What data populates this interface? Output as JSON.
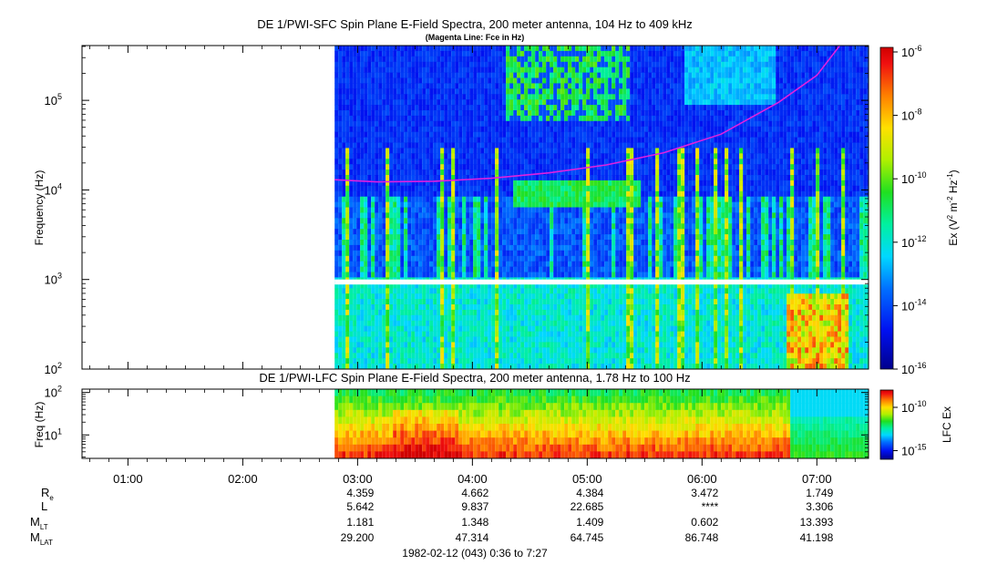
{
  "chart_data": [
    {
      "type": "heatmap",
      "title": "DE 1/PWI-SFC  Spin Plane E-Field Spectra, 200 meter antenna, 104 Hz to 409 kHz",
      "subtitle": "(Magenta Line: Fce in Hz)",
      "ylabel": "Frequency (Hz)",
      "y_scale": "log",
      "ylim": [
        100,
        409000
      ],
      "y_ticks": [
        {
          "value": 100,
          "base": "10",
          "exp": "2"
        },
        {
          "value": 1000,
          "base": "10",
          "exp": "3"
        },
        {
          "value": 10000,
          "base": "10",
          "exp": "4"
        },
        {
          "value": 100000,
          "base": "10",
          "exp": "5"
        }
      ],
      "colorbar": {
        "label_prefix": "Ex (V",
        "label_sup1": "2",
        "label_mid": " m",
        "label_sup2": "-2",
        "label_mid2": " Hz",
        "label_sup3": "-1",
        "label_suffix": ")",
        "scale": "log",
        "range": [
          1e-16,
          1e-06
        ],
        "ticks": [
          {
            "value": 1e-06,
            "base": "10",
            "exp": "-6"
          },
          {
            "value": 1e-08,
            "base": "10",
            "exp": "-8"
          },
          {
            "value": 1e-10,
            "base": "10",
            "exp": "-10"
          },
          {
            "value": 1e-12,
            "base": "10",
            "exp": "-12"
          },
          {
            "value": 1e-14,
            "base": "10",
            "exp": "-14"
          },
          {
            "value": 1e-16,
            "base": "10",
            "exp": "-16"
          }
        ]
      },
      "data_start_time": "02:48",
      "gap_frequency_hz": [
        900,
        1000
      ],
      "fce_line": {
        "color": "#e020e0",
        "points": [
          {
            "t": "02:48",
            "f": 13000
          },
          {
            "t": "03:10",
            "f": 12300
          },
          {
            "t": "03:40",
            "f": 12500
          },
          {
            "t": "04:10",
            "f": 13500
          },
          {
            "t": "04:40",
            "f": 15500
          },
          {
            "t": "05:10",
            "f": 19000
          },
          {
            "t": "05:40",
            "f": 26000
          },
          {
            "t": "06:10",
            "f": 42000
          },
          {
            "t": "06:40",
            "f": 95000
          },
          {
            "t": "07:00",
            "f": 190000
          },
          {
            "t": "07:12",
            "f": 409000
          }
        ]
      }
    },
    {
      "type": "heatmap",
      "title": "DE 1/PWI-LFC  Spin Plane E-Field Spectra, 200 meter antenna, 1.78 Hz to 100 Hz",
      "ylabel": "Freq (Hz)",
      "y_scale": "log",
      "ylim": [
        2.8,
        120
      ],
      "y_ticks": [
        {
          "value": 10,
          "base": "10",
          "exp": "1"
        },
        {
          "value": 100,
          "base": "10",
          "exp": "2"
        }
      ],
      "colorbar": {
        "label": "LFC Ex",
        "scale": "log",
        "range": [
          1e-16,
          1e-08
        ],
        "ticks": [
          {
            "value": 1e-10,
            "base": "10",
            "exp": "-10"
          },
          {
            "value": 1e-15,
            "base": "10",
            "exp": "-15"
          }
        ]
      },
      "data_start_time": "02:48"
    }
  ],
  "time_axis": {
    "range": [
      "00:36",
      "07:27"
    ],
    "ticks": [
      "01:00",
      "02:00",
      "03:00",
      "04:00",
      "05:00",
      "06:00",
      "07:00"
    ],
    "date_label": "1982-02-12 (043) 0:36 to 7:27"
  },
  "ephemeris": {
    "rows": [
      {
        "label": "R",
        "sub": "e",
        "values": [
          "4.359",
          "4.662",
          "4.384",
          "3.472",
          "1.749"
        ]
      },
      {
        "label": "L",
        "sub": "",
        "values": [
          "5.642",
          "9.837",
          "22.685",
          "****",
          "3.306"
        ]
      },
      {
        "label": "M",
        "sub": "LT",
        "values": [
          "1.181",
          "1.348",
          "1.409",
          "0.602",
          "13.393"
        ]
      },
      {
        "label": "M",
        "sub": "LAT",
        "values": [
          "29.200",
          "47.314",
          "64.745",
          "86.748",
          "41.198"
        ]
      }
    ],
    "times": [
      "03:00",
      "04:00",
      "05:00",
      "06:00",
      "07:00"
    ]
  }
}
